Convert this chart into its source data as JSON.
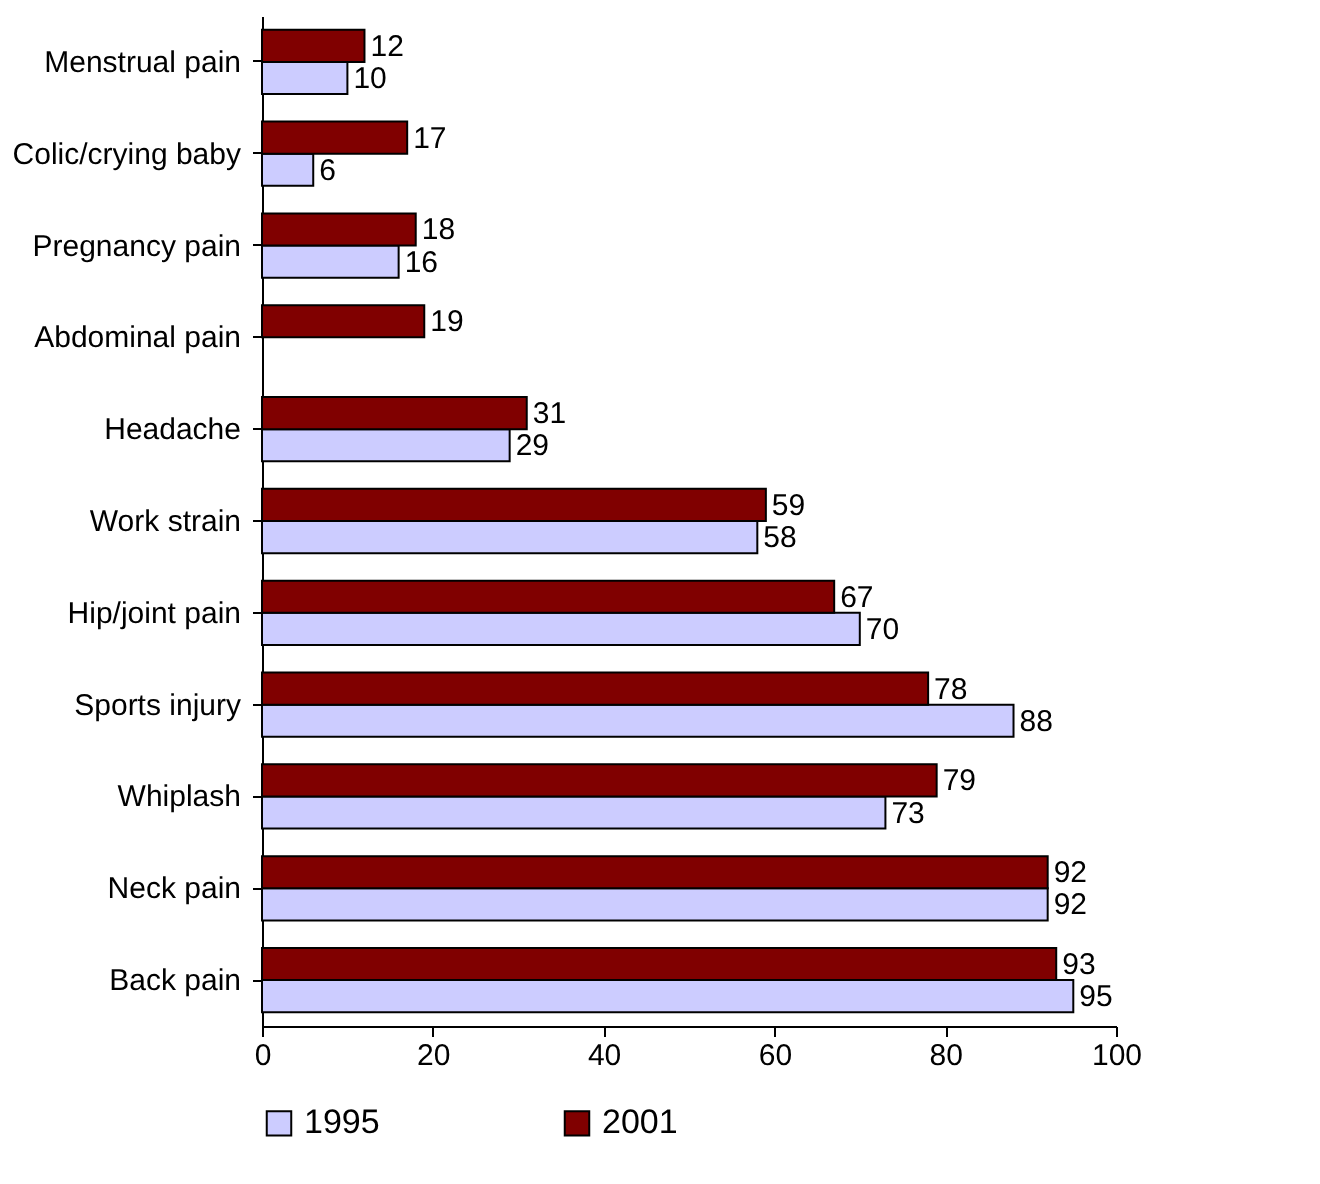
{
  "chart_data": {
    "type": "bar",
    "orientation": "horizontal",
    "categories": [
      "Menstrual pain",
      "Colic/crying baby",
      "Pregnancy pain",
      "Abdominal pain",
      "Headache",
      "Work strain",
      "Hip/joint pain",
      "Sports injury",
      "Whiplash",
      "Neck pain",
      "Back pain"
    ],
    "series": [
      {
        "name": "1995",
        "color": "#ccccff",
        "values": [
          10,
          6,
          16,
          null,
          29,
          58,
          70,
          88,
          73,
          92,
          95
        ]
      },
      {
        "name": "2001",
        "color": "#800000",
        "values": [
          12,
          17,
          18,
          19,
          31,
          59,
          67,
          78,
          79,
          92,
          93
        ]
      }
    ],
    "xlim": [
      0,
      100
    ],
    "xticks": [
      0,
      20,
      40,
      60,
      80,
      100
    ],
    "data_labels": true,
    "legend": "bottom",
    "grid": false
  }
}
